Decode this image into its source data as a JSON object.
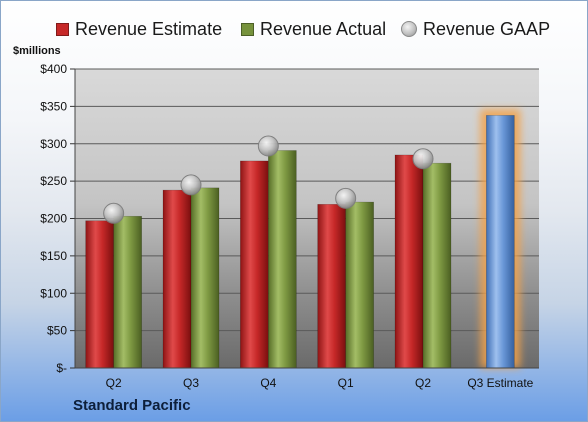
{
  "chart_data": {
    "type": "bar",
    "categories": [
      "Q2",
      "Q3",
      "Q4",
      "Q1",
      "Q2",
      "Q3 Estimate"
    ],
    "series": [
      {
        "name": "Revenue Estimate",
        "values": [
          197,
          238,
          277,
          219,
          285,
          null
        ]
      },
      {
        "name": "Revenue Actual",
        "values": [
          203,
          241,
          291,
          222,
          274,
          338
        ]
      },
      {
        "name": "Revenue GAAP",
        "values": [
          207,
          245,
          297,
          227,
          280,
          null
        ]
      }
    ],
    "highlight": {
      "category_index": 5,
      "series_name": "Revenue Actual",
      "color": "#6a98d8",
      "glow": "#f3a24a"
    },
    "colors": {
      "estimate": "#c62828",
      "actual": "#76923c",
      "gaap": "#b8b8b8"
    },
    "y_tick_labels": [
      "$-",
      "$50",
      "$100",
      "$150",
      "$200",
      "$250",
      "$300",
      "$350",
      "$400"
    ],
    "ylim": [
      0,
      400
    ],
    "ylabel": "$millions",
    "grid": true,
    "legend_position": "top"
  },
  "company": "Standard Pacific"
}
